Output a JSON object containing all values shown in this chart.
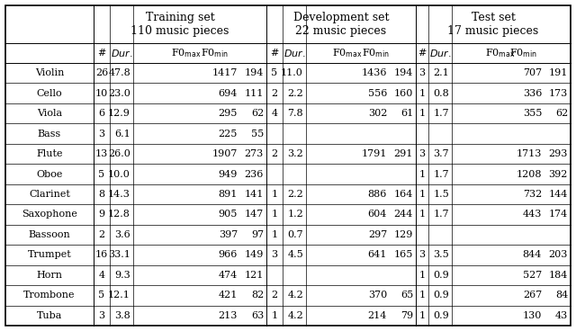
{
  "instruments": [
    "Violin",
    "Cello",
    "Viola",
    "Bass",
    "Flute",
    "Oboe",
    "Clarinet",
    "Saxophone",
    "Bassoon",
    "Trumpet",
    "Horn",
    "Trombone",
    "Tuba"
  ],
  "training": [
    [
      "26",
      "47.8",
      "1417",
      "194"
    ],
    [
      "10",
      "23.0",
      "694",
      "111"
    ],
    [
      "6",
      "12.9",
      "295",
      "62"
    ],
    [
      "3",
      "6.1",
      "225",
      "55"
    ],
    [
      "13",
      "26.0",
      "1907",
      "273"
    ],
    [
      "5",
      "10.0",
      "949",
      "236"
    ],
    [
      "8",
      "14.3",
      "891",
      "141"
    ],
    [
      "9",
      "12.8",
      "905",
      "147"
    ],
    [
      "2",
      "3.6",
      "397",
      "97"
    ],
    [
      "16",
      "33.1",
      "966",
      "149"
    ],
    [
      "4",
      "9.3",
      "474",
      "121"
    ],
    [
      "5",
      "12.1",
      "421",
      "82"
    ],
    [
      "3",
      "3.8",
      "213",
      "63"
    ]
  ],
  "development": [
    [
      "5",
      "11.0",
      "1436",
      "194"
    ],
    [
      "2",
      "2.2",
      "556",
      "160"
    ],
    [
      "4",
      "7.8",
      "302",
      "61"
    ],
    [
      "",
      "",
      "",
      ""
    ],
    [
      "2",
      "3.2",
      "1791",
      "291"
    ],
    [
      "",
      "",
      "",
      ""
    ],
    [
      "1",
      "2.2",
      "886",
      "164"
    ],
    [
      "1",
      "1.2",
      "604",
      "244"
    ],
    [
      "1",
      "0.7",
      "297",
      "129"
    ],
    [
      "3",
      "4.5",
      "641",
      "165"
    ],
    [
      "",
      "",
      "",
      ""
    ],
    [
      "2",
      "4.2",
      "370",
      "65"
    ],
    [
      "1",
      "4.2",
      "214",
      "79"
    ]
  ],
  "test": [
    [
      "3",
      "2.1",
      "707",
      "191"
    ],
    [
      "1",
      "0.8",
      "336",
      "173"
    ],
    [
      "1",
      "1.7",
      "355",
      "62"
    ],
    [
      "",
      "",
      "",
      ""
    ],
    [
      "3",
      "3.7",
      "1713",
      "293"
    ],
    [
      "1",
      "1.7",
      "1208",
      "392"
    ],
    [
      "1",
      "1.5",
      "732",
      "144"
    ],
    [
      "1",
      "1.7",
      "443",
      "174"
    ],
    [
      "",
      "",
      "",
      ""
    ],
    [
      "3",
      "3.5",
      "844",
      "203"
    ],
    [
      "1",
      "0.9",
      "527",
      "184"
    ],
    [
      "1",
      "0.9",
      "267",
      "84"
    ],
    [
      "1",
      "0.9",
      "130",
      "43"
    ]
  ],
  "bg_color": "#ffffff",
  "fontsize_data": 8.0,
  "fontsize_header1": 9.0,
  "fontsize_header2": 8.0
}
